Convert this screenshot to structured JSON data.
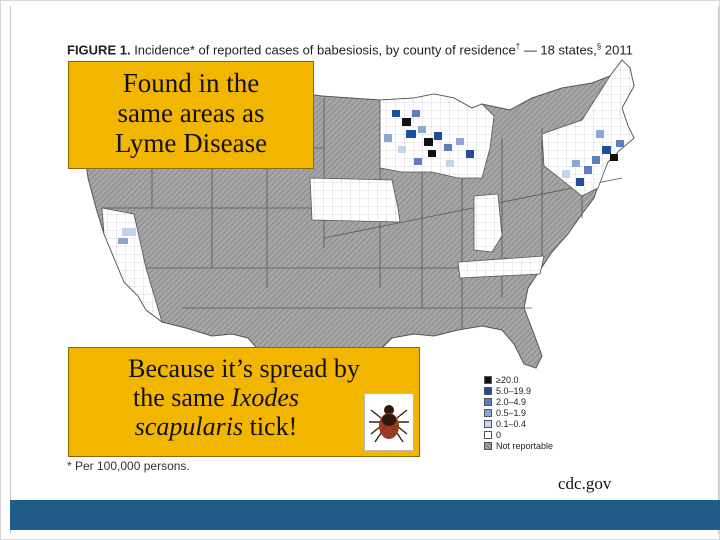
{
  "figure": {
    "title_label": "FIGURE 1.",
    "title_text": " Incidence* of reported cases of babesiosis, by county of residence",
    "title_sup1": "†",
    "title_mid": " — 18 states,",
    "title_sup2": "§",
    "title_year": " 2011",
    "footnote": "* Per 100,000 persons."
  },
  "legend": {
    "items": [
      {
        "label": "≥20.0",
        "color": "#111111"
      },
      {
        "label": "5.0–19.9",
        "color": "#1f4e9a"
      },
      {
        "label": "2.0–4.9",
        "color": "#5b7fbf"
      },
      {
        "label": "0.5–1.9",
        "color": "#8ea6d6"
      },
      {
        "label": "0.1–0.4",
        "color": "#c5d2ec"
      },
      {
        "label": "0",
        "color": "#ffffff"
      },
      {
        "label": "Not reportable",
        "color": "#9a9a9a"
      }
    ]
  },
  "callouts": {
    "top_lines": [
      "Found in the",
      "same areas as",
      "Lyme Disease"
    ],
    "bottom_line1": "Because it’s spread by",
    "bottom_line2_prefix": "the same ",
    "bottom_line2_italic": "Ixodes",
    "bottom_line3_italic": "scapularis",
    "bottom_line3_suffix": " tick!"
  },
  "source": "cdc.gov",
  "colors": {
    "not_reportable": "#9a9a9a",
    "zero": "#ffffff",
    "footer_bar": "#1f5c8a",
    "callout_bg": "#f2b500"
  },
  "icons": {
    "tick": "tick-photo"
  }
}
